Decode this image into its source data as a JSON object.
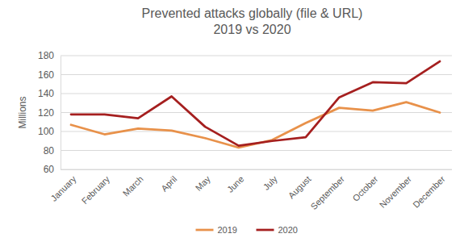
{
  "chart_data": {
    "type": "line",
    "title": "Prevented attacks globally (file & URL)",
    "subtitle": "2019 vs 2020",
    "ylabel": "Millions",
    "categories": [
      "January",
      "February",
      "March",
      "April",
      "May",
      "June",
      "July",
      "August",
      "September",
      "October",
      "November",
      "December"
    ],
    "series": [
      {
        "name": "2019",
        "color": "#e8914a",
        "values": [
          107,
          97,
          103,
          101,
          93,
          83,
          91,
          109,
          125,
          122,
          131,
          120
        ]
      },
      {
        "name": "2020",
        "color": "#a51f1f",
        "values": [
          118,
          118,
          114,
          137,
          105,
          85,
          90,
          94,
          136,
          152,
          151,
          174
        ]
      }
    ],
    "ylim": [
      60,
      180
    ],
    "yticks": [
      60,
      80,
      100,
      120,
      140,
      160,
      180
    ],
    "grid": true,
    "legend": "bottom"
  }
}
